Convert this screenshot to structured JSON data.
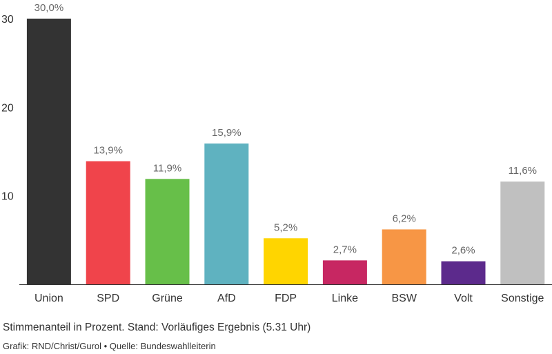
{
  "chart_data": {
    "type": "bar",
    "categories": [
      "Union",
      "SPD",
      "Grüne",
      "AfD",
      "FDP",
      "Linke",
      "BSW",
      "Volt",
      "Sonstige"
    ],
    "values": [
      30.0,
      13.9,
      11.9,
      15.9,
      5.2,
      2.7,
      6.2,
      2.6,
      11.6
    ],
    "value_labels": [
      "30,0%",
      "13,9%",
      "11,9%",
      "15,9%",
      "5,2%",
      "2,7%",
      "6,2%",
      "2,6%",
      "11,6%"
    ],
    "colors": [
      "#333333",
      "#f0444b",
      "#67bf49",
      "#5fb2c0",
      "#ffd500",
      "#c72762",
      "#f79645",
      "#5c2a8c",
      "#c0c0c0"
    ],
    "y_ticks": [
      10,
      20,
      30
    ],
    "ylim": [
      0,
      30
    ],
    "grid": false,
    "legend": "none"
  },
  "caption": "Stimmenanteil in Prozent. Stand: Vorläufiges Ergebnis (5.31 Uhr)",
  "credit": "Grafik: RND/Christ/Gurol • Quelle: Bundeswahlleiterin"
}
